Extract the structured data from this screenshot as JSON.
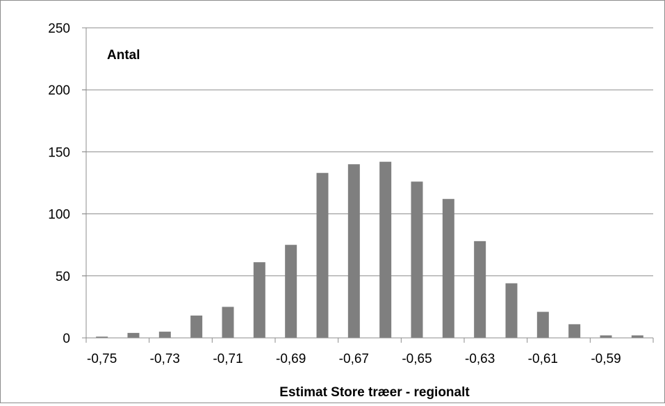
{
  "chart_data": {
    "type": "bar",
    "title": "",
    "ylabel": "Antal",
    "xlabel": "Estimat Store træer - regionalt",
    "categories": [
      "-0,75",
      "-0,74",
      "-0,73",
      "-0,72",
      "-0,71",
      "-0,70",
      "-0,69",
      "-0,68",
      "-0,67",
      "-0,66",
      "-0,65",
      "-0,64",
      "-0,63",
      "-0,62",
      "-0,61",
      "-0,60",
      "-0,59",
      "-0,58"
    ],
    "x_tick_labels": [
      "-0,75",
      "-0,73",
      "-0,71",
      "-0,69",
      "-0,67",
      "-0,65",
      "-0,63",
      "-0,61",
      "-0,59"
    ],
    "values": [
      1,
      4,
      5,
      18,
      25,
      61,
      75,
      133,
      140,
      142,
      126,
      112,
      78,
      44,
      21,
      11,
      2,
      2
    ],
    "ylim": [
      0,
      250
    ],
    "y_ticks": [
      0,
      50,
      100,
      150,
      200,
      250
    ],
    "grid": true,
    "legend": "none",
    "bar_color": "#7f7f7f",
    "grid_color": "#8c8c8c"
  }
}
